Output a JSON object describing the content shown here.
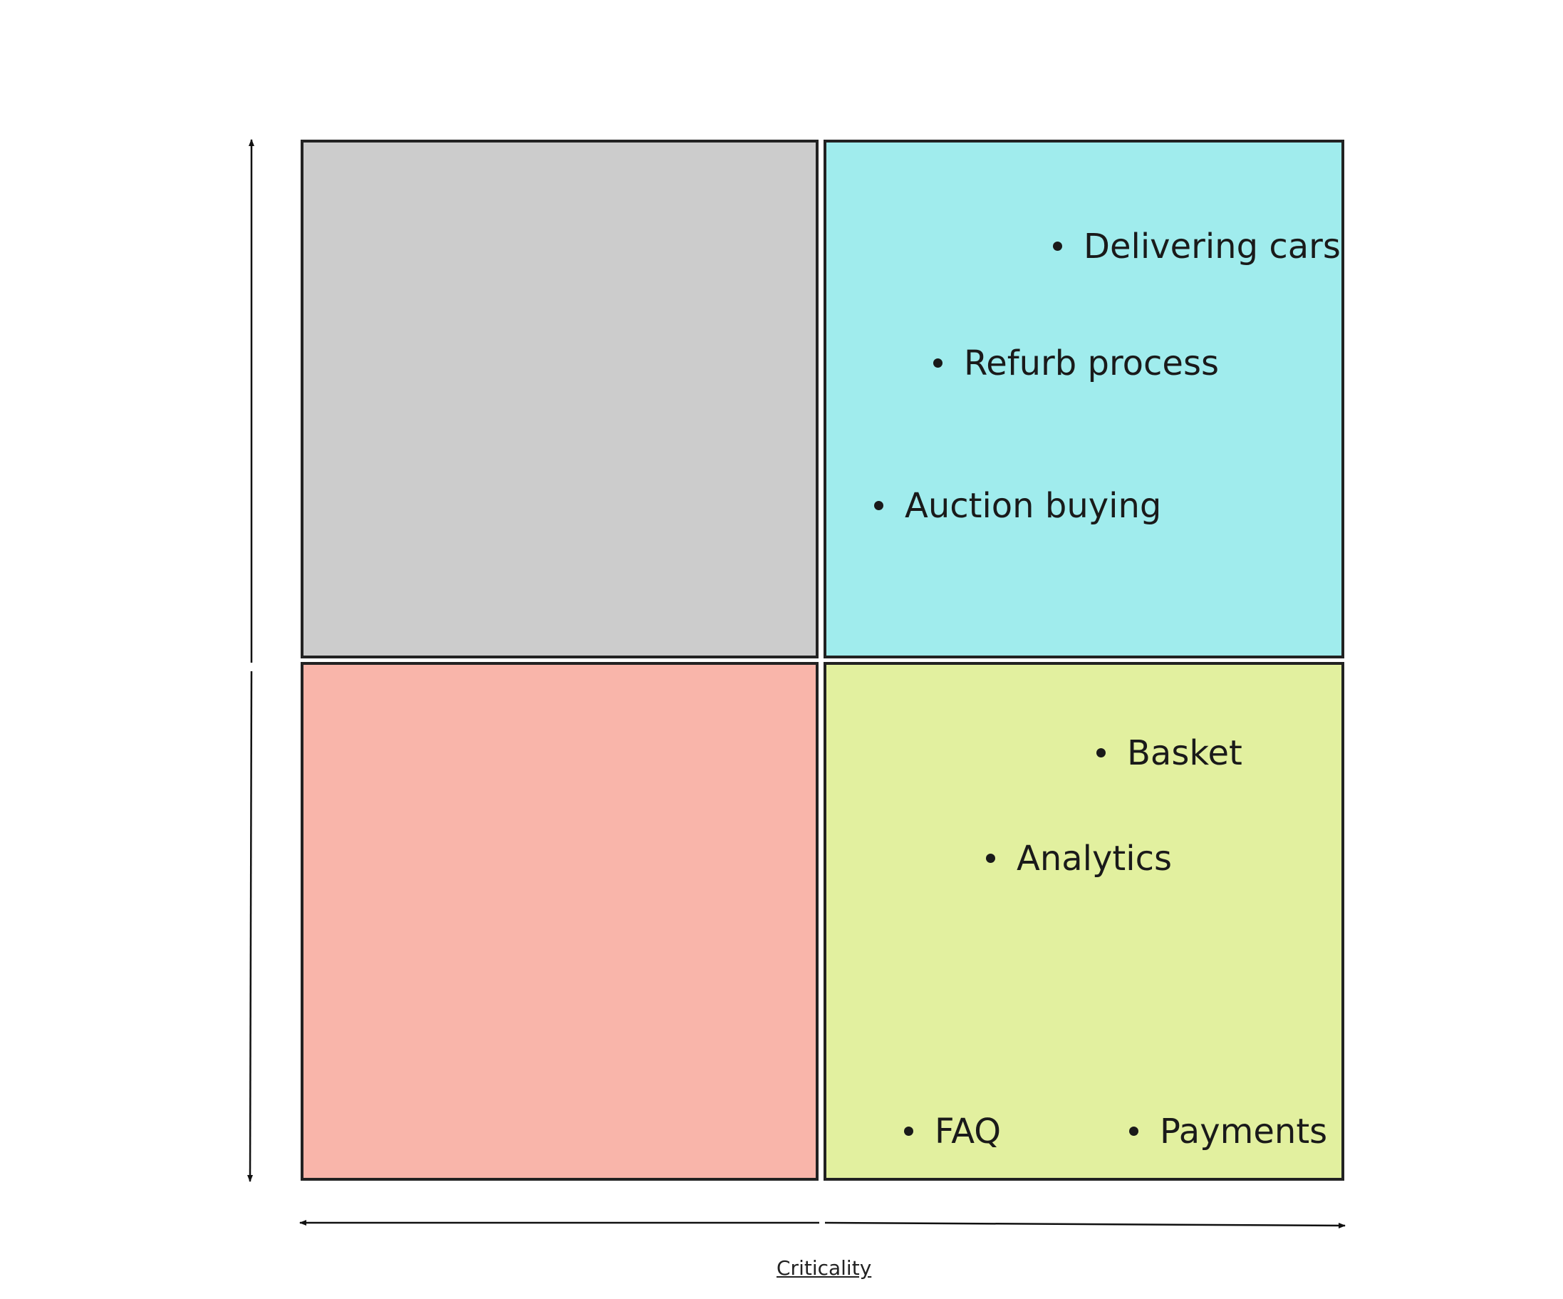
{
  "quadrants": {
    "top_left": {
      "color": "#cccccc",
      "items": []
    },
    "top_right": {
      "color": "#a0eced",
      "items": [
        "Delivering cars",
        "Refurb process",
        "Auction buying"
      ]
    },
    "bottom_left": {
      "color": "#f9b5aa",
      "items": []
    },
    "bottom_right": {
      "color": "#e2f09f",
      "items": [
        "Basket",
        "Analytics",
        "FAQ",
        "Payments"
      ]
    }
  },
  "axes": {
    "x_label": "Criticality",
    "y_label": ""
  },
  "stroke_color": "#222222"
}
